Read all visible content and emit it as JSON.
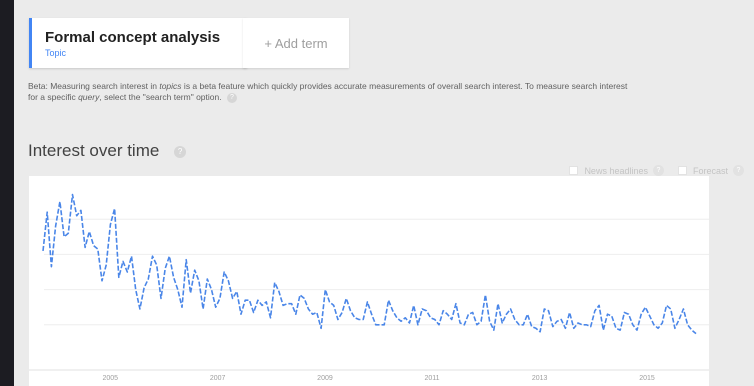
{
  "term": {
    "name": "Formal concept analysis",
    "type": "Topic"
  },
  "add_term_label": "+ Add term",
  "beta_note": {
    "part1": "Beta: Measuring search interest in ",
    "part2": "topics",
    "part3": " is a beta feature which quickly provides accurate measurements of overall search interest. To measure search interest for a specific ",
    "part4": "query",
    "part5": ", select the \"search term\" option.",
    "help_icon": "?"
  },
  "section": {
    "title": "Interest over time",
    "help_icon": "?"
  },
  "options": [
    {
      "label": "News headlines",
      "help_icon": "?"
    },
    {
      "label": "Forecast",
      "help_icon": "?"
    }
  ],
  "colors": {
    "accent": "#4285f4",
    "line": "#4a86e8"
  },
  "chart_data": {
    "type": "line",
    "title": "",
    "xlabel": "",
    "ylabel": "",
    "x_ticks": [
      "2005",
      "2007",
      "2009",
      "2011",
      "2013",
      "2015"
    ],
    "x_range": [
      2004,
      2016.67
    ],
    "y_range": [
      0,
      100
    ],
    "line_style": "dashed",
    "grid": "horizontal",
    "series": [
      {
        "values": [
          62,
          84,
          53,
          76,
          90,
          70,
          72,
          94,
          82,
          85,
          64,
          73,
          65,
          63,
          45,
          54,
          77,
          86,
          47,
          56,
          50,
          59,
          40,
          29,
          41,
          46,
          59,
          54,
          35,
          52,
          59,
          47,
          40,
          30,
          57,
          38,
          51,
          45,
          29,
          46,
          40,
          30,
          35,
          50,
          45,
          35,
          39,
          26,
          34,
          34,
          27,
          34,
          31,
          33,
          24,
          44,
          39,
          31,
          32,
          32,
          26,
          37,
          35,
          29,
          26,
          27,
          18,
          40,
          33,
          31,
          23,
          27,
          35,
          28,
          24,
          23,
          23,
          33,
          26,
          20,
          20,
          20,
          34,
          28,
          24,
          22,
          24,
          21,
          31,
          20,
          29,
          28,
          24,
          23,
          20,
          28,
          26,
          23,
          32,
          21,
          20,
          26,
          27,
          20,
          22,
          37,
          22,
          17,
          32,
          21,
          26,
          29,
          23,
          20,
          20,
          26,
          19,
          18,
          16,
          29,
          28,
          19,
          22,
          23,
          18,
          27,
          18,
          21,
          20,
          20,
          19,
          28,
          31,
          17,
          26,
          25,
          18,
          17,
          27,
          26,
          20,
          17,
          26,
          30,
          25,
          20,
          18,
          21,
          31,
          29,
          18,
          23,
          29,
          20,
          17,
          15
        ]
      }
    ]
  }
}
